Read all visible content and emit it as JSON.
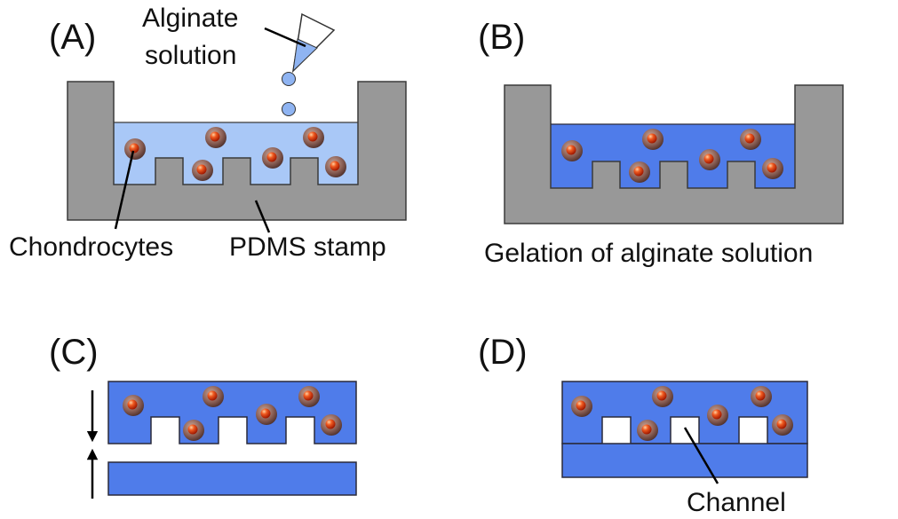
{
  "panels": [
    {
      "label": "(A)",
      "annotations": [
        "Alginate",
        "solution",
        "Chondrocytes",
        "PDMS stamp"
      ]
    },
    {
      "label": "(B)",
      "caption": "Gelation of alginate solution"
    },
    {
      "label": "(C)"
    },
    {
      "label": "(D)",
      "annotations": [
        "Channel"
      ]
    }
  ]
}
